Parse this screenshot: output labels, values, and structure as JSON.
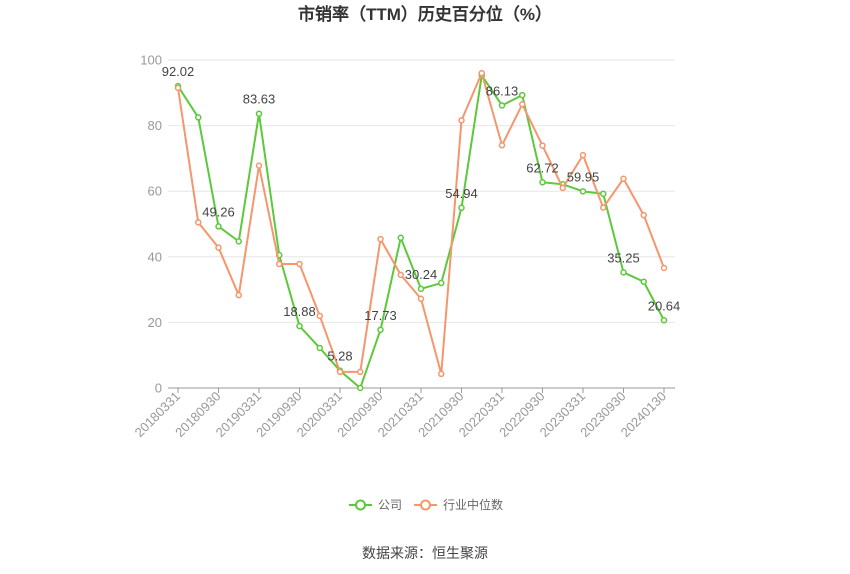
{
  "source": "数据来源：恒生聚源",
  "chart_data": {
    "type": "line",
    "title": "市销率（TTM）历史百分位（%）",
    "xlabel": "",
    "ylabel": "",
    "ylim": [
      0,
      100
    ],
    "yticks": [
      0,
      20,
      40,
      60,
      80,
      100
    ],
    "grid": true,
    "legend_position": "bottom",
    "categories": [
      "20180331",
      "",
      "20180930",
      "",
      "20190331",
      "",
      "20190930",
      "",
      "20200331",
      "",
      "20200930",
      "",
      "20210331",
      "",
      "20210930",
      "",
      "20220331",
      "",
      "20220930",
      "",
      "20230331",
      "",
      "20230930",
      "",
      "20240130"
    ],
    "series": [
      {
        "name": "公司",
        "color": "#5cc93b",
        "values": [
          92.02,
          82.5,
          49.26,
          44.7,
          83.63,
          40.5,
          18.88,
          12.2,
          5.28,
          0,
          17.73,
          45.8,
          30.24,
          32.0,
          54.94,
          95.3,
          86.13,
          89.3,
          62.72,
          62.1,
          59.95,
          59.2,
          35.25,
          32.4,
          20.64
        ],
        "labels": [
          "92.02",
          null,
          "49.26",
          null,
          "83.63",
          null,
          "18.88",
          null,
          "5.28",
          null,
          "17.73",
          null,
          "30.24",
          null,
          "54.94",
          null,
          "86.13",
          null,
          "62.72",
          null,
          "59.95",
          null,
          "35.25",
          null,
          "20.64"
        ]
      },
      {
        "name": "行业中位数",
        "color": "#f5966c",
        "values": [
          91.5,
          50.5,
          42.8,
          28.3,
          67.8,
          37.8,
          37.8,
          22.0,
          4.9,
          4.9,
          45.4,
          34.5,
          27.2,
          4.3,
          81.6,
          96.0,
          74.0,
          86.5,
          73.9,
          61.0,
          71.0,
          55.0,
          63.8,
          52.7,
          36.6
        ]
      }
    ]
  }
}
